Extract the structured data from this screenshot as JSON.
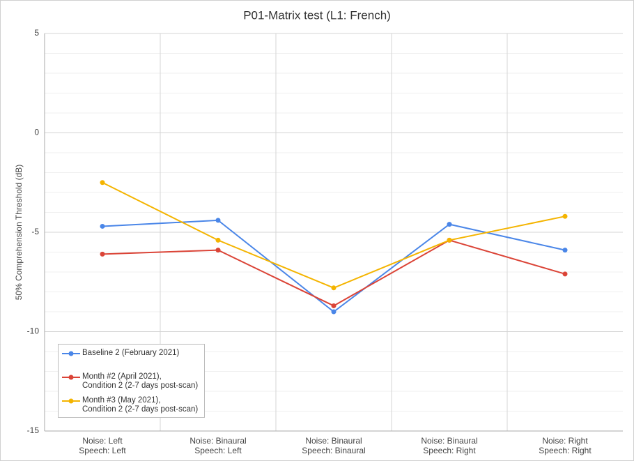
{
  "chart_data": {
    "type": "line",
    "title": "P01-Matrix test (L1: French)",
    "y_label": "50% Comprehension  Threshold  (dB)",
    "categories": [
      "Noise: Left\nSpeech: Left",
      "Noise: Binaural\nSpeech: Left",
      "Noise: Binaural\nSpeech: Binaural",
      "Noise: Binaural\nSpeech: Right",
      "Noise: Right\nSpeech: Right"
    ],
    "series": [
      {
        "name": "Baseline 2 (February 2021)",
        "color": "#4a86e8",
        "values": [
          -4.7,
          -4.4,
          -9.0,
          -4.6,
          -5.9
        ]
      },
      {
        "name": "Month #2 (April 2021),\nCondition 2 (2-7 days post-scan)",
        "color": "#db4437",
        "values": [
          -6.1,
          -5.9,
          -8.7,
          -5.4,
          -7.1
        ]
      },
      {
        "name": "Month #3 (May 2021),\nCondition 2 (2-7 days post-scan)",
        "color": "#f4b400",
        "values": [
          -2.5,
          -5.4,
          -7.8,
          -5.4,
          -4.2
        ]
      }
    ],
    "ylim": [
      -15,
      5
    ],
    "yticks": [
      -15,
      -10,
      -5,
      0,
      5
    ],
    "minor_yticks": [
      -14,
      -13,
      -12,
      -11,
      -9,
      -8,
      -7,
      -6,
      -4,
      -3,
      -2,
      -1,
      1,
      2,
      3,
      4
    ],
    "grid": true,
    "legend": "bottom-left"
  }
}
